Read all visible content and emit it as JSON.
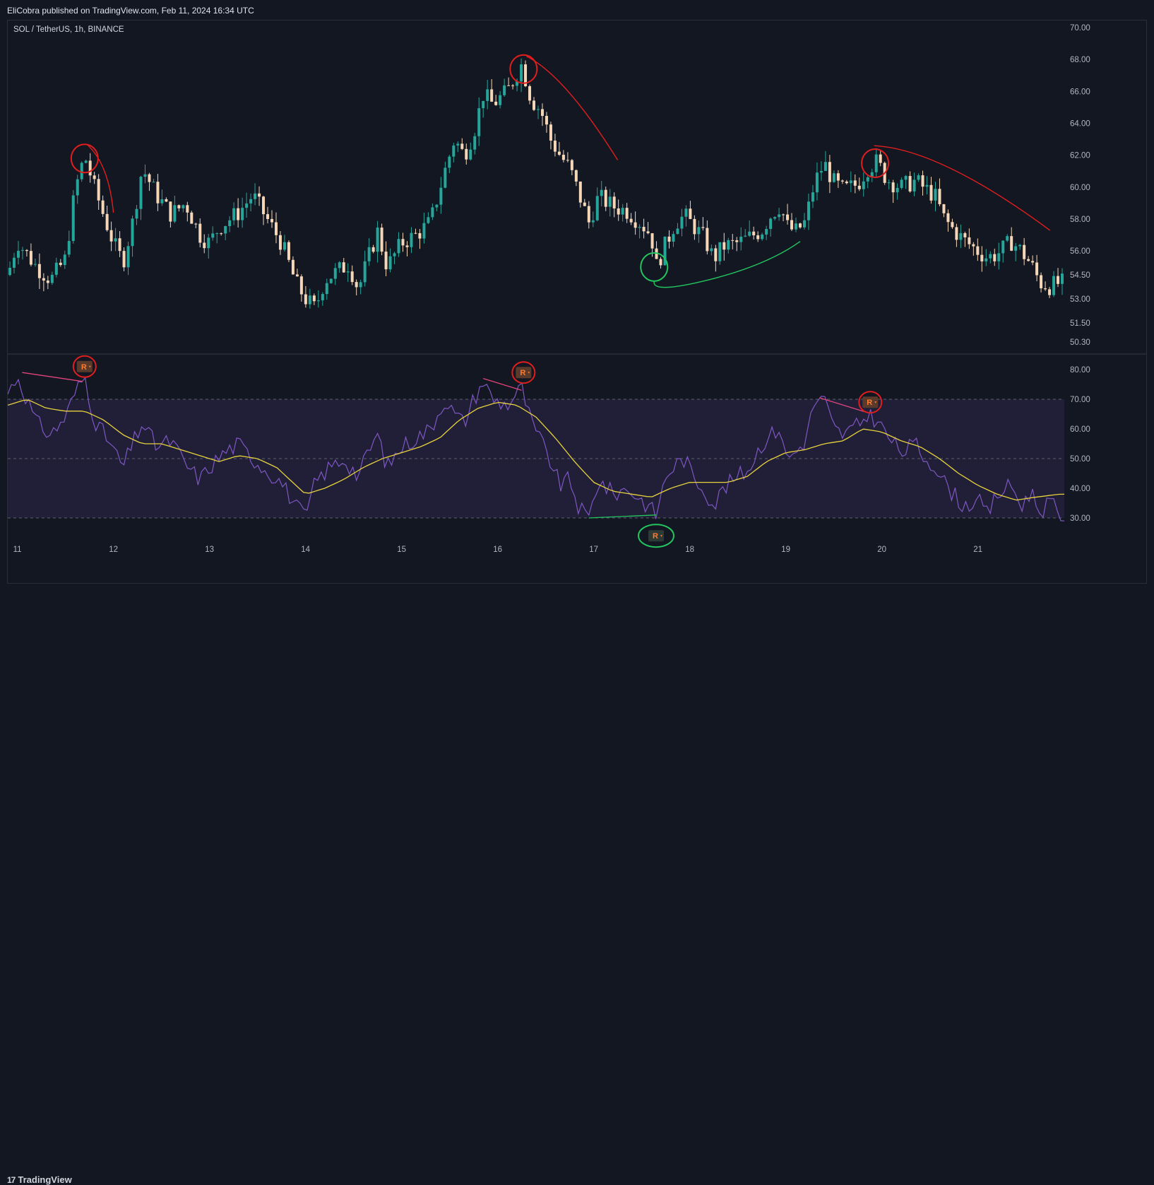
{
  "header": {
    "publish_line": "EliCobra published on TradingView.com, Feb 11, 2024 16:34 UTC"
  },
  "symbol_line": "SOL / TetherUS, 1h, BINANCE",
  "footer": {
    "brand": "TradingView",
    "glyph": "17"
  },
  "colors": {
    "background": "#131722",
    "bull_candle": "#26a69a",
    "bear_candle": "#f5d7b8",
    "rsi_line": "#7e57c2",
    "rsi_ma": "#e6d23c",
    "band_fill": "#211f38",
    "bear_mark": "#e01e1e",
    "bull_mark": "#22c55e"
  },
  "chart_data": [
    {
      "type": "candlestick",
      "pane": "price",
      "symbol": "SOL / TetherUS",
      "timeframe": "1h",
      "exchange": "BINANCE",
      "y_ticks": [
        "70.00",
        "68.00",
        "66.00",
        "64.00",
        "62.00",
        "60.00",
        "58.00",
        "56.00",
        "54.50",
        "53.00",
        "51.50",
        "50.30"
      ],
      "x_ticks": [
        "11",
        "12",
        "13",
        "14",
        "15",
        "16",
        "17",
        "18",
        "19",
        "20",
        "21"
      ],
      "x_range": [
        10.9,
        21.9
      ],
      "price_path": [
        [
          10.9,
          54.5
        ],
        [
          11.0,
          56.6
        ],
        [
          11.2,
          55.0
        ],
        [
          11.35,
          54.2
        ],
        [
          11.5,
          55.5
        ],
        [
          11.6,
          59.8
        ],
        [
          11.7,
          62.0
        ],
        [
          11.8,
          60.0
        ],
        [
          11.9,
          58.2
        ],
        [
          12.0,
          56.5
        ],
        [
          12.1,
          55.3
        ],
        [
          12.2,
          57.8
        ],
        [
          12.3,
          61.2
        ],
        [
          12.45,
          59.5
        ],
        [
          12.6,
          58.3
        ],
        [
          12.75,
          59.0
        ],
        [
          12.9,
          57.0
        ],
        [
          13.0,
          56.5
        ],
        [
          13.1,
          57.5
        ],
        [
          13.3,
          58.4
        ],
        [
          13.45,
          59.5
        ],
        [
          13.6,
          58.0
        ],
        [
          13.75,
          56.5
        ],
        [
          13.9,
          54.0
        ],
        [
          14.0,
          53.0
        ],
        [
          14.1,
          52.4
        ],
        [
          14.2,
          54.2
        ],
        [
          14.3,
          54.6
        ],
        [
          14.45,
          55.2
        ],
        [
          14.55,
          53.6
        ],
        [
          14.65,
          55.5
        ],
        [
          14.75,
          57.2
        ],
        [
          14.85,
          55.0
        ],
        [
          15.0,
          56.5
        ],
        [
          15.15,
          57.0
        ],
        [
          15.3,
          57.8
        ],
        [
          15.45,
          61.0
        ],
        [
          15.55,
          63.0
        ],
        [
          15.65,
          62.0
        ],
        [
          15.75,
          63.4
        ],
        [
          15.85,
          65.8
        ],
        [
          15.95,
          65.2
        ],
        [
          16.1,
          66.0
        ],
        [
          16.25,
          67.7
        ],
        [
          16.35,
          65.5
        ],
        [
          16.45,
          64.8
        ],
        [
          16.55,
          63.0
        ],
        [
          16.65,
          62.0
        ],
        [
          16.75,
          61.2
        ],
        [
          16.85,
          59.5
        ],
        [
          16.95,
          57.8
        ],
        [
          17.05,
          59.4
        ],
        [
          17.2,
          58.8
        ],
        [
          17.35,
          58.5
        ],
        [
          17.5,
          57.7
        ],
        [
          17.6,
          57.0
        ],
        [
          17.65,
          55.0
        ],
        [
          17.72,
          56.0
        ],
        [
          17.85,
          57.8
        ],
        [
          17.95,
          58.2
        ],
        [
          18.05,
          57.5
        ],
        [
          18.15,
          56.8
        ],
        [
          18.25,
          55.5
        ],
        [
          18.35,
          56.3
        ],
        [
          18.5,
          56.5
        ],
        [
          18.6,
          56.8
        ],
        [
          18.75,
          57.3
        ],
        [
          18.85,
          58.3
        ],
        [
          18.95,
          58.9
        ],
        [
          19.0,
          57.6
        ],
        [
          19.1,
          57.2
        ],
        [
          19.2,
          57.8
        ],
        [
          19.3,
          60.3
        ],
        [
          19.4,
          61.5
        ],
        [
          19.5,
          60.3
        ],
        [
          19.6,
          59.8
        ],
        [
          19.75,
          60.2
        ],
        [
          19.85,
          61.2
        ],
        [
          19.95,
          61.6
        ],
        [
          20.05,
          60.5
        ],
        [
          20.2,
          60.0
        ],
        [
          20.35,
          60.4
        ],
        [
          20.45,
          59.9
        ],
        [
          20.55,
          59.5
        ],
        [
          20.65,
          58.0
        ],
        [
          20.75,
          57.3
        ],
        [
          20.85,
          56.7
        ],
        [
          21.0,
          56.0
        ],
        [
          21.1,
          55.6
        ],
        [
          21.2,
          55.8
        ],
        [
          21.35,
          56.6
        ],
        [
          21.45,
          56.0
        ],
        [
          21.55,
          55.2
        ],
        [
          21.65,
          54.0
        ],
        [
          21.75,
          53.8
        ],
        [
          21.85,
          54.0
        ]
      ]
    },
    {
      "type": "line",
      "pane": "rsi",
      "y_ticks": [
        "80.00",
        "70.00",
        "60.00",
        "50.00",
        "40.00",
        "30.00"
      ],
      "bands": [
        70,
        50,
        30
      ],
      "series": [
        {
          "key": "rsi",
          "points": [
            [
              10.9,
              72
            ],
            [
              11.0,
              78
            ],
            [
              11.1,
              70
            ],
            [
              11.2,
              62
            ],
            [
              11.35,
              58
            ],
            [
              11.5,
              64
            ],
            [
              11.6,
              72
            ],
            [
              11.7,
              78
            ],
            [
              11.8,
              63
            ],
            [
              11.95,
              56
            ],
            [
              12.1,
              47
            ],
            [
              12.2,
              55
            ],
            [
              12.3,
              62
            ],
            [
              12.45,
              54
            ],
            [
              12.6,
              56
            ],
            [
              12.75,
              48
            ],
            [
              12.9,
              43
            ],
            [
              13.0,
              47
            ],
            [
              13.15,
              52
            ],
            [
              13.3,
              55
            ],
            [
              13.45,
              50
            ],
            [
              13.6,
              46
            ],
            [
              13.75,
              42
            ],
            [
              13.9,
              34
            ],
            [
              14.0,
              30
            ],
            [
              14.1,
              42
            ],
            [
              14.25,
              47
            ],
            [
              14.4,
              50
            ],
            [
              14.55,
              44
            ],
            [
              14.65,
              52
            ],
            [
              14.75,
              58
            ],
            [
              14.85,
              47
            ],
            [
              15.0,
              54
            ],
            [
              15.15,
              57
            ],
            [
              15.3,
              60
            ],
            [
              15.45,
              70
            ],
            [
              15.55,
              65
            ],
            [
              15.65,
              62
            ],
            [
              15.75,
              70
            ],
            [
              15.85,
              76
            ],
            [
              15.95,
              70
            ],
            [
              16.1,
              68
            ],
            [
              16.25,
              74
            ],
            [
              16.35,
              62
            ],
            [
              16.45,
              56
            ],
            [
              16.55,
              49
            ],
            [
              16.65,
              41
            ],
            [
              16.75,
              43
            ],
            [
              16.85,
              33
            ],
            [
              16.95,
              30
            ],
            [
              17.05,
              43
            ],
            [
              17.2,
              38
            ],
            [
              17.35,
              40
            ],
            [
              17.5,
              36
            ],
            [
              17.6,
              33
            ],
            [
              17.65,
              31
            ],
            [
              17.75,
              44
            ],
            [
              17.85,
              48
            ],
            [
              17.95,
              50
            ],
            [
              18.05,
              43
            ],
            [
              18.15,
              40
            ],
            [
              18.25,
              34
            ],
            [
              18.35,
              40
            ],
            [
              18.5,
              44
            ],
            [
              18.6,
              46
            ],
            [
              18.75,
              55
            ],
            [
              18.85,
              58
            ],
            [
              18.95,
              61
            ],
            [
              19.0,
              50
            ],
            [
              19.1,
              52
            ],
            [
              19.2,
              56
            ],
            [
              19.3,
              69
            ],
            [
              19.4,
              70
            ],
            [
              19.5,
              60
            ],
            [
              19.6,
              58
            ],
            [
              19.75,
              61
            ],
            [
              19.85,
              65
            ],
            [
              19.95,
              63
            ],
            [
              20.05,
              58
            ],
            [
              20.2,
              52
            ],
            [
              20.35,
              55
            ],
            [
              20.45,
              50
            ],
            [
              20.55,
              48
            ],
            [
              20.65,
              42
            ],
            [
              20.75,
              38
            ],
            [
              20.85,
              34
            ],
            [
              21.0,
              36
            ],
            [
              21.1,
              31
            ],
            [
              21.2,
              38
            ],
            [
              21.35,
              41
            ],
            [
              21.45,
              34
            ],
            [
              21.55,
              39
            ],
            [
              21.65,
              32
            ],
            [
              21.75,
              36
            ],
            [
              21.85,
              30
            ]
          ]
        },
        {
          "key": "rsi_ma",
          "points": [
            [
              10.9,
              68
            ],
            [
              11.1,
              70
            ],
            [
              11.3,
              67
            ],
            [
              11.5,
              66
            ],
            [
              11.7,
              66
            ],
            [
              11.9,
              63
            ],
            [
              12.1,
              58
            ],
            [
              12.3,
              55
            ],
            [
              12.5,
              55
            ],
            [
              12.7,
              53
            ],
            [
              12.9,
              51
            ],
            [
              13.1,
              49
            ],
            [
              13.3,
              51
            ],
            [
              13.5,
              50
            ],
            [
              13.7,
              47
            ],
            [
              13.9,
              41
            ],
            [
              14.0,
              38
            ],
            [
              14.2,
              40
            ],
            [
              14.4,
              43
            ],
            [
              14.6,
              47
            ],
            [
              14.8,
              50
            ],
            [
              15.0,
              52
            ],
            [
              15.2,
              54
            ],
            [
              15.4,
              57
            ],
            [
              15.6,
              63
            ],
            [
              15.8,
              67
            ],
            [
              16.0,
              69
            ],
            [
              16.2,
              68
            ],
            [
              16.4,
              64
            ],
            [
              16.6,
              57
            ],
            [
              16.8,
              49
            ],
            [
              17.0,
              42
            ],
            [
              17.2,
              39
            ],
            [
              17.4,
              38
            ],
            [
              17.6,
              37
            ],
            [
              17.8,
              40
            ],
            [
              18.0,
              42
            ],
            [
              18.2,
              42
            ],
            [
              18.4,
              42
            ],
            [
              18.6,
              44
            ],
            [
              18.8,
              49
            ],
            [
              19.0,
              52
            ],
            [
              19.2,
              53
            ],
            [
              19.4,
              55
            ],
            [
              19.6,
              56
            ],
            [
              19.8,
              60
            ],
            [
              20.0,
              59
            ],
            [
              20.2,
              56
            ],
            [
              20.4,
              54
            ],
            [
              20.6,
              50
            ],
            [
              20.8,
              45
            ],
            [
              21.0,
              41
            ],
            [
              21.2,
              38
            ],
            [
              21.4,
              36
            ],
            [
              21.6,
              37
            ],
            [
              21.85,
              38
            ]
          ]
        }
      ]
    }
  ],
  "annotations": {
    "price_pane": [
      {
        "kind": "circle",
        "color": "red",
        "x": 11.7,
        "price": 61.8
      },
      {
        "kind": "circle",
        "color": "red",
        "x": 16.27,
        "price": 67.4
      },
      {
        "kind": "circle",
        "color": "red",
        "x": 19.93,
        "price": 61.5
      },
      {
        "kind": "circle",
        "color": "green",
        "x": 17.63,
        "price": 55.0
      }
    ],
    "rsi_pane_labels": [
      {
        "text": "R",
        "color": "red",
        "x": 11.7,
        "rsi": 81
      },
      {
        "text": "R",
        "color": "red",
        "x": 16.27,
        "rsi": 79
      },
      {
        "text": "R",
        "color": "red",
        "x": 19.88,
        "rsi": 69
      },
      {
        "text": "R",
        "color": "green",
        "x": 17.65,
        "rsi": 24
      }
    ]
  }
}
